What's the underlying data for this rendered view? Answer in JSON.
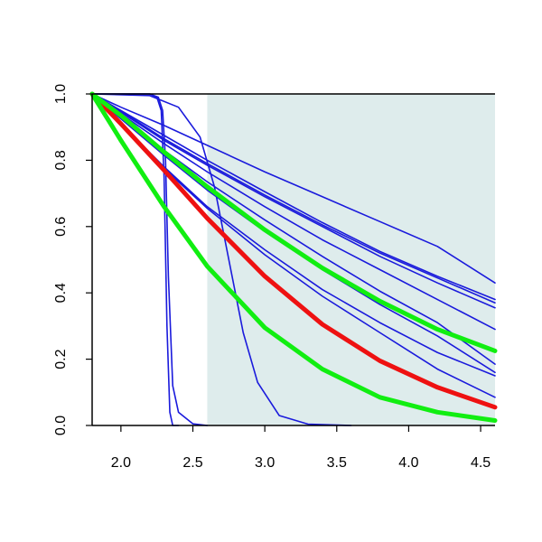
{
  "chart_data": {
    "type": "line",
    "title": "",
    "xlabel": "",
    "ylabel": "",
    "xlim": [
      1.8,
      4.6
    ],
    "ylim": [
      0.0,
      1.0
    ],
    "x_ticks": [
      2.0,
      2.5,
      3.0,
      3.5,
      4.0,
      4.5
    ],
    "x_tick_labels": [
      "2.0",
      "2.5",
      "3.0",
      "3.5",
      "4.0",
      "4.5"
    ],
    "y_ticks": [
      0.0,
      0.2,
      0.4,
      0.6,
      0.8,
      1.0
    ],
    "y_tick_labels": [
      "0.0",
      "0.2",
      "0.4",
      "0.6",
      "0.8",
      "1.0"
    ],
    "grid": false,
    "shaded_region": {
      "x_from": 2.6,
      "x_to": 4.6,
      "color": "#deecec"
    },
    "colors": {
      "blue": "#1a1adc",
      "red": "#ee1111",
      "green": "#11ee11"
    },
    "series": [
      {
        "color": "blue",
        "width": "thin",
        "x": [
          1.8,
          2.0,
          2.3,
          2.6,
          3.0,
          3.4,
          3.8,
          4.2,
          4.6
        ],
        "y": [
          1.0,
          0.945,
          0.86,
          0.785,
          0.69,
          0.6,
          0.51,
          0.43,
          0.355
        ]
      },
      {
        "color": "blue",
        "width": "thin",
        "x": [
          1.8,
          2.0,
          2.3,
          2.6,
          3.0,
          3.4,
          3.8,
          4.2,
          4.6
        ],
        "y": [
          1.0,
          0.948,
          0.865,
          0.79,
          0.695,
          0.605,
          0.52,
          0.445,
          0.37
        ]
      },
      {
        "color": "blue",
        "width": "thin",
        "x": [
          1.8,
          2.0,
          2.3,
          2.6,
          3.0,
          3.4,
          3.8,
          4.2,
          4.6
        ],
        "y": [
          1.0,
          0.95,
          0.875,
          0.8,
          0.705,
          0.612,
          0.525,
          0.45,
          0.38
        ]
      },
      {
        "color": "blue",
        "width": "thin",
        "x": [
          1.8,
          2.0,
          2.3,
          2.6,
          3.0,
          3.4,
          3.8,
          4.2,
          4.6
        ],
        "y": [
          1.0,
          0.96,
          0.905,
          0.845,
          0.765,
          0.69,
          0.615,
          0.54,
          0.43
        ]
      },
      {
        "color": "blue",
        "width": "thin",
        "x": [
          1.8,
          2.0,
          2.3,
          2.6,
          3.0,
          3.4,
          3.8,
          4.2,
          4.6
        ],
        "y": [
          1.0,
          0.94,
          0.85,
          0.765,
          0.66,
          0.56,
          0.47,
          0.38,
          0.29
        ]
      },
      {
        "color": "blue",
        "width": "thin",
        "x": [
          1.8,
          2.0,
          2.3,
          2.6,
          3.0,
          3.4,
          3.8,
          4.2,
          4.6
        ],
        "y": [
          1.0,
          0.93,
          0.83,
          0.735,
          0.62,
          0.51,
          0.405,
          0.31,
          0.185
        ]
      },
      {
        "color": "blue",
        "width": "thin",
        "x": [
          1.8,
          2.0,
          2.3,
          2.6,
          3.0,
          3.4,
          3.8,
          4.2,
          4.6
        ],
        "y": [
          1.0,
          0.925,
          0.815,
          0.71,
          0.585,
          0.47,
          0.365,
          0.27,
          0.16
        ]
      },
      {
        "color": "blue",
        "width": "thin",
        "x": [
          1.8,
          2.0,
          2.3,
          2.6,
          3.0,
          3.4,
          3.8,
          4.2,
          4.6
        ],
        "y": [
          1.0,
          0.905,
          0.775,
          0.655,
          0.515,
          0.39,
          0.28,
          0.17,
          0.085
        ]
      },
      {
        "color": "blue",
        "width": "thin",
        "x": [
          1.8,
          2.0,
          2.3,
          2.6,
          3.0,
          3.4,
          3.8,
          4.2,
          4.6
        ],
        "y": [
          1.0,
          0.91,
          0.78,
          0.66,
          0.53,
          0.41,
          0.31,
          0.22,
          0.15
        ]
      },
      {
        "color": "blue",
        "width": "thin",
        "x": [
          1.8,
          2.1,
          2.2,
          2.25,
          2.28,
          2.3,
          2.32,
          2.34,
          2.36,
          2.4
        ],
        "y": [
          1.0,
          1.0,
          1.0,
          0.99,
          0.95,
          0.75,
          0.3,
          0.04,
          0.0,
          0.0
        ]
      },
      {
        "color": "blue",
        "width": "thin",
        "x": [
          1.8,
          2.2,
          2.26,
          2.29,
          2.31,
          2.33,
          2.36,
          2.4,
          2.5,
          2.6
        ],
        "y": [
          1.0,
          1.0,
          0.99,
          0.95,
          0.8,
          0.45,
          0.12,
          0.04,
          0.005,
          0.0
        ]
      },
      {
        "color": "blue",
        "width": "thin",
        "x": [
          1.8,
          2.2,
          2.4,
          2.55,
          2.65,
          2.75,
          2.85,
          2.95,
          3.1,
          3.3,
          3.6
        ],
        "y": [
          1.0,
          0.995,
          0.96,
          0.87,
          0.72,
          0.5,
          0.28,
          0.13,
          0.03,
          0.004,
          0.0
        ]
      },
      {
        "color": "red",
        "width": "thick",
        "x": [
          1.8,
          2.0,
          2.3,
          2.6,
          3.0,
          3.4,
          3.8,
          4.2,
          4.6
        ],
        "y": [
          1.0,
          0.91,
          0.77,
          0.625,
          0.45,
          0.305,
          0.195,
          0.115,
          0.055
        ]
      },
      {
        "color": "green",
        "width": "thick",
        "x": [
          1.8,
          2.0,
          2.3,
          2.6,
          3.0,
          3.4,
          3.8,
          4.2,
          4.6
        ],
        "y": [
          1.0,
          0.935,
          0.825,
          0.72,
          0.59,
          0.475,
          0.375,
          0.29,
          0.225
        ]
      },
      {
        "color": "green",
        "width": "thick",
        "x": [
          1.8,
          2.0,
          2.3,
          2.6,
          3.0,
          3.4,
          3.8,
          4.2,
          4.6
        ],
        "y": [
          1.0,
          0.86,
          0.66,
          0.48,
          0.295,
          0.17,
          0.085,
          0.04,
          0.015
        ]
      }
    ]
  }
}
